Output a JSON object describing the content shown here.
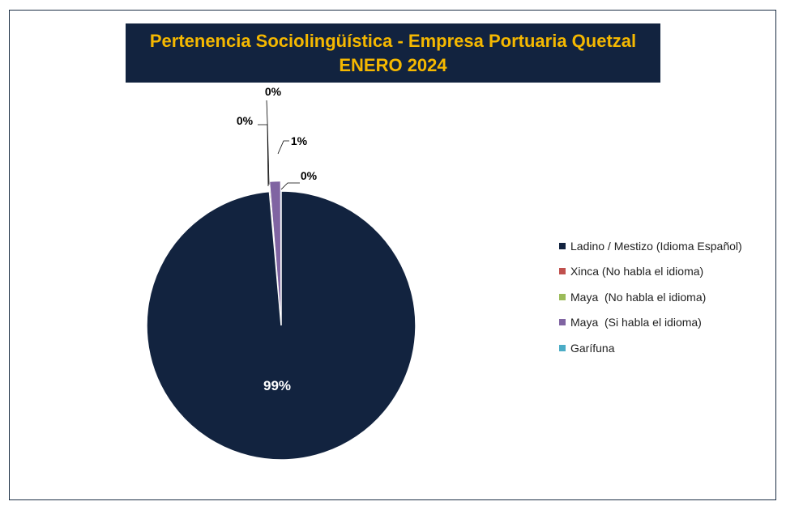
{
  "chart_data": {
    "type": "pie",
    "title_lines": [
      "Pertenencia Sociolingüística - Empresa Portuaria Quetzal",
      "ENERO 2024"
    ],
    "slices": [
      {
        "name": "Ladino / Mestizo (Idioma Español)",
        "value": 98.6,
        "label": "99%",
        "color": "#12233f"
      },
      {
        "name": "Xinca (No habla el idioma)",
        "value": 0.05,
        "label": "0%",
        "color": "#c0504d"
      },
      {
        "name": "Maya  (No habla el idioma)",
        "value": 0.05,
        "label": "0%",
        "color": "#9bbb59"
      },
      {
        "name": "Maya  (Si habla el idioma)",
        "value": 1.25,
        "label": "1%",
        "color": "#8064a2"
      },
      {
        "name": "Garífuna",
        "value": 0.05,
        "label": "0%",
        "color": "#4bacc6"
      }
    ],
    "legend_position": "right"
  }
}
